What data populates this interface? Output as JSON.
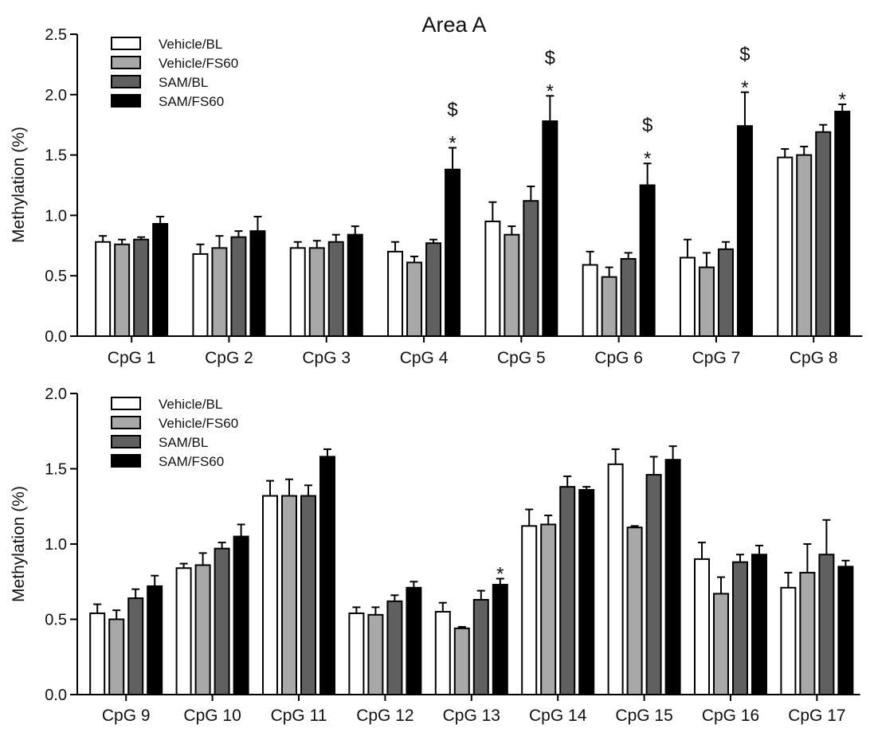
{
  "chart_data": [
    {
      "type": "bar",
      "title": "Area A",
      "ylabel": "Methylation (%)",
      "ylim": [
        0,
        2.5
      ],
      "yticks": [
        "0.0",
        "0.5",
        "1.0",
        "1.5",
        "2.0",
        "2.5"
      ],
      "categories": [
        "CpG 1",
        "CpG 2",
        "CpG 3",
        "CpG 4",
        "CpG 5",
        "CpG 6",
        "CpG 7",
        "CpG 8"
      ],
      "legend": {
        "position": "top-left"
      },
      "series": [
        {
          "name": "Vehicle/BL",
          "color": "#ffffff",
          "values": [
            0.78,
            0.68,
            0.73,
            0.7,
            0.95,
            0.59,
            0.65,
            1.48
          ],
          "errors": [
            0.05,
            0.08,
            0.05,
            0.08,
            0.16,
            0.11,
            0.15,
            0.07
          ]
        },
        {
          "name": "Vehicle/FS60",
          "color": "#a8a8a8",
          "values": [
            0.76,
            0.73,
            0.73,
            0.61,
            0.84,
            0.49,
            0.57,
            1.5
          ],
          "errors": [
            0.04,
            0.1,
            0.06,
            0.05,
            0.07,
            0.08,
            0.12,
            0.07
          ]
        },
        {
          "name": "SAM/BL",
          "color": "#606060",
          "values": [
            0.8,
            0.82,
            0.78,
            0.77,
            1.12,
            0.64,
            0.72,
            1.69
          ],
          "errors": [
            0.02,
            0.05,
            0.06,
            0.03,
            0.12,
            0.05,
            0.06,
            0.06
          ]
        },
        {
          "name": "SAM/FS60",
          "color": "#000000",
          "values": [
            0.93,
            0.87,
            0.84,
            1.38,
            1.78,
            1.25,
            1.74,
            1.86
          ],
          "errors": [
            0.06,
            0.12,
            0.07,
            0.18,
            0.21,
            0.18,
            0.28,
            0.06
          ]
        }
      ],
      "annotations": [
        {
          "category": "CpG 4",
          "series": "SAM/FS60",
          "marks": [
            "$",
            "*"
          ]
        },
        {
          "category": "CpG 5",
          "series": "SAM/FS60",
          "marks": [
            "$",
            "*"
          ]
        },
        {
          "category": "CpG 6",
          "series": "SAM/FS60",
          "marks": [
            "$",
            "*"
          ]
        },
        {
          "category": "CpG 7",
          "series": "SAM/FS60",
          "marks": [
            "$",
            "*"
          ]
        },
        {
          "category": "CpG 8",
          "series": "SAM/FS60",
          "marks": [
            "*"
          ]
        }
      ]
    },
    {
      "type": "bar",
      "title": "",
      "ylabel": "Methylation (%)",
      "ylim": [
        0,
        2.0
      ],
      "yticks": [
        "0.0",
        "0.5",
        "1.0",
        "1.5",
        "2.0"
      ],
      "categories": [
        "CpG 9",
        "CpG 10",
        "CpG 11",
        "CpG 12",
        "CpG 13",
        "CpG 14",
        "CpG 15",
        "CpG 16",
        "CpG 17"
      ],
      "legend": {
        "position": "top-left"
      },
      "series": [
        {
          "name": "Vehicle/BL",
          "color": "#ffffff",
          "values": [
            0.54,
            0.84,
            1.32,
            0.54,
            0.55,
            1.12,
            1.53,
            0.9,
            0.71
          ],
          "errors": [
            0.06,
            0.03,
            0.1,
            0.04,
            0.06,
            0.11,
            0.1,
            0.11,
            0.1
          ]
        },
        {
          "name": "Vehicle/FS60",
          "color": "#a8a8a8",
          "values": [
            0.5,
            0.86,
            1.32,
            0.53,
            0.44,
            1.13,
            1.11,
            0.67,
            0.81
          ],
          "errors": [
            0.06,
            0.08,
            0.11,
            0.05,
            0.01,
            0.06,
            0.01,
            0.11,
            0.19
          ]
        },
        {
          "name": "SAM/BL",
          "color": "#606060",
          "values": [
            0.64,
            0.97,
            1.32,
            0.62,
            0.63,
            1.38,
            1.46,
            0.88,
            0.93
          ],
          "errors": [
            0.06,
            0.04,
            0.07,
            0.04,
            0.06,
            0.07,
            0.12,
            0.05,
            0.23
          ]
        },
        {
          "name": "SAM/FS60",
          "color": "#000000",
          "values": [
            0.72,
            1.05,
            1.58,
            0.71,
            0.73,
            1.36,
            1.56,
            0.93,
            0.85
          ],
          "errors": [
            0.07,
            0.08,
            0.05,
            0.04,
            0.04,
            0.02,
            0.09,
            0.06,
            0.04
          ]
        }
      ],
      "annotations": [
        {
          "category": "CpG 13",
          "series": "SAM/FS60",
          "marks": [
            "*"
          ]
        }
      ]
    }
  ]
}
